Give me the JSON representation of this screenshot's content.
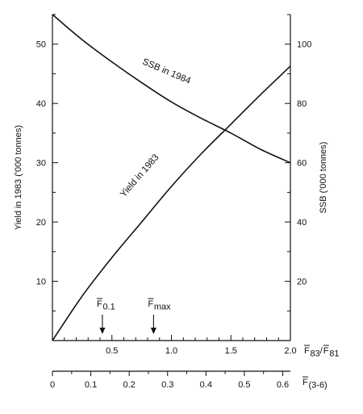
{
  "chart_data": {
    "type": "line",
    "x_axis": {
      "label_parts": [
        "F",
        "83",
        " / ",
        "F",
        "81"
      ],
      "range": [
        0,
        2.0
      ],
      "ticks": [
        0.5,
        1.0,
        1.5,
        2.0
      ],
      "tick_labels": [
        "0.5",
        "1.0",
        "1.5",
        "2.0"
      ]
    },
    "x_axis_secondary": {
      "label_parts": [
        "F",
        "(3-6)"
      ],
      "range": [
        0,
        0.62
      ],
      "ticks": [
        0,
        0.1,
        0.2,
        0.3,
        0.4,
        0.5,
        0.6
      ],
      "tick_labels": [
        "0",
        "0.1",
        "0.2",
        "0.3",
        "0.4",
        "0.5",
        "0.6"
      ]
    },
    "y_axis_left": {
      "label": "Yield in 1983 ('000 tonnes)",
      "range": [
        0,
        55
      ],
      "ticks": [
        10,
        20,
        30,
        40,
        50
      ],
      "tick_labels": [
        "10",
        "20",
        "30",
        "40",
        "50"
      ]
    },
    "y_axis_right": {
      "label": "SSB ('000 tonnes)",
      "range": [
        0,
        110
      ],
      "ticks": [
        20,
        40,
        60,
        80,
        100
      ],
      "tick_labels": [
        "20",
        "40",
        "60",
        "80",
        "100"
      ]
    },
    "series": [
      {
        "name": "Yield in 1983",
        "axis": "left",
        "x": [
          0,
          0.25,
          0.5,
          0.75,
          1.0,
          1.25,
          1.5,
          1.75,
          2.0
        ],
        "y": [
          0,
          7.5,
          14.0,
          20.0,
          26.0,
          31.5,
          36.5,
          41.5,
          46.3
        ]
      },
      {
        "name": "SSB in 1984",
        "axis": "right",
        "x": [
          0,
          0.25,
          0.5,
          0.75,
          1.0,
          1.25,
          1.5,
          1.75,
          2.0
        ],
        "y": [
          110,
          101.5,
          94,
          87,
          80.5,
          75,
          70,
          64.5,
          60
        ]
      }
    ],
    "annotations": [
      {
        "label_parts": [
          "F",
          "0.1"
        ],
        "x": 0.42
      },
      {
        "label_parts": [
          "F",
          "max"
        ],
        "x": 0.85
      }
    ],
    "grid": false
  }
}
